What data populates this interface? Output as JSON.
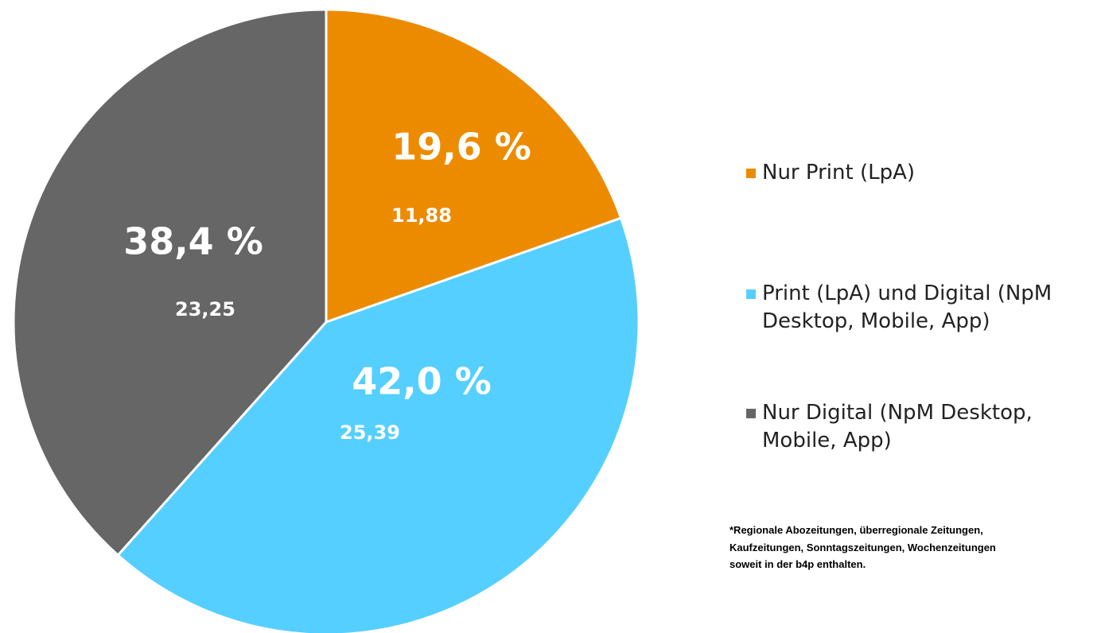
{
  "chart_data": {
    "type": "pie",
    "categories": [
      "Nur Print (LpA)",
      "Print (LpA) und Digital (NpM Desktop, Mobile, App)",
      "Nur Digital (NpM Desktop, Mobile, App)"
    ],
    "values": [
      19.6,
      42.0,
      38.4
    ],
    "value_labels": [
      "19,6 %",
      "42,0 %",
      "38,4 %"
    ],
    "secondary_values": [
      11.88,
      25.39,
      23.25
    ],
    "secondary_value_labels": [
      "11,88",
      "25,39",
      "23,25"
    ],
    "colors": [
      "#ED8B00",
      "#55CFFF",
      "#666666"
    ],
    "legend": "right",
    "footnote": [
      "*Regionale Abozeitungen, überregionale Zeitungen,",
      "Kaufzeitungen, Sonntagszeitungen, Wochenzeitungen",
      "soweit in der b4p enthalten."
    ]
  }
}
